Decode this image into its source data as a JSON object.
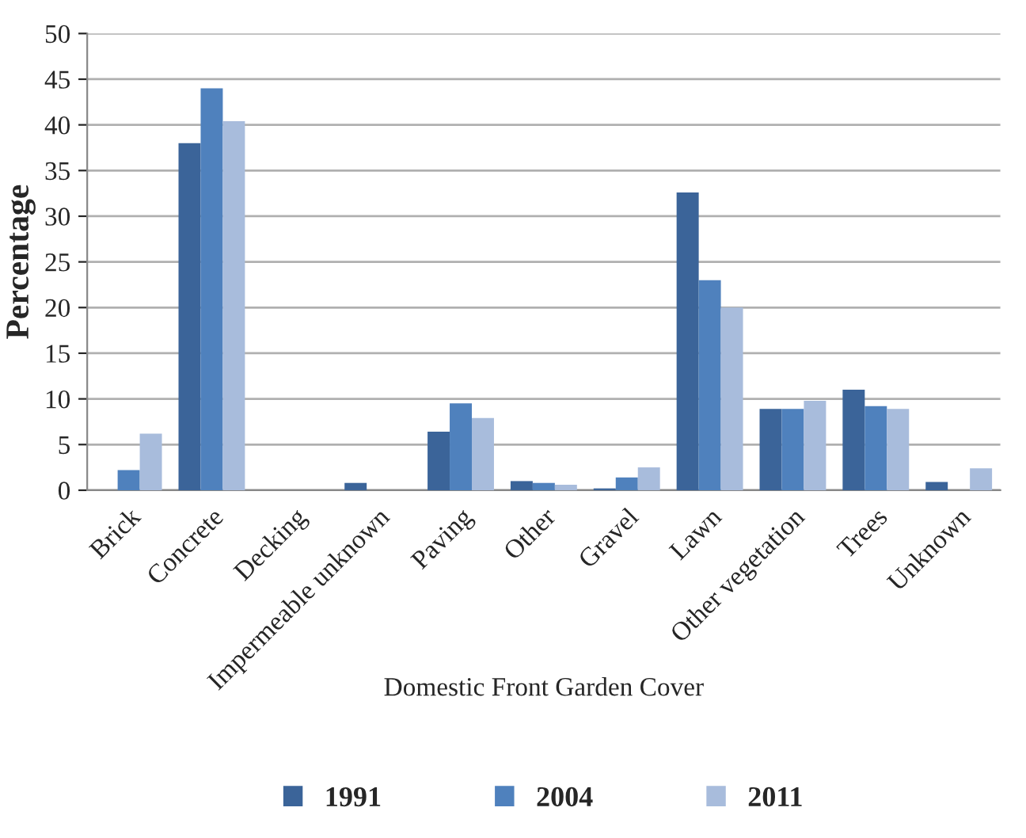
{
  "chart_data": {
    "type": "bar",
    "xlabel": "Domestic Front Garden Cover",
    "ylabel": "Percentage",
    "categories": [
      "Brick",
      "Concrete",
      "Decking",
      "Impermeable unknown",
      "Paving",
      "Other",
      "Gravel",
      "Lawn",
      "Other vegetation",
      "Trees",
      "Unknown"
    ],
    "series": [
      {
        "name": "1991",
        "color": "#3b6499",
        "values": [
          null,
          38,
          null,
          0.8,
          6.4,
          1.0,
          0.2,
          32.6,
          8.9,
          11,
          0.9
        ]
      },
      {
        "name": "2004",
        "color": "#4f81bd",
        "values": [
          2.2,
          44,
          null,
          null,
          9.5,
          0.8,
          1.4,
          23,
          8.9,
          9.2,
          null
        ]
      },
      {
        "name": "2011",
        "color": "#a8bcdc",
        "values": [
          6.2,
          40.4,
          null,
          null,
          7.9,
          0.6,
          2.5,
          20,
          9.8,
          8.9,
          2.4
        ]
      }
    ],
    "ylim": [
      0,
      50
    ],
    "yticks": [
      0,
      5,
      10,
      15,
      20,
      25,
      30,
      35,
      40,
      45,
      50
    ],
    "grid": "y",
    "legend": "bottom"
  }
}
